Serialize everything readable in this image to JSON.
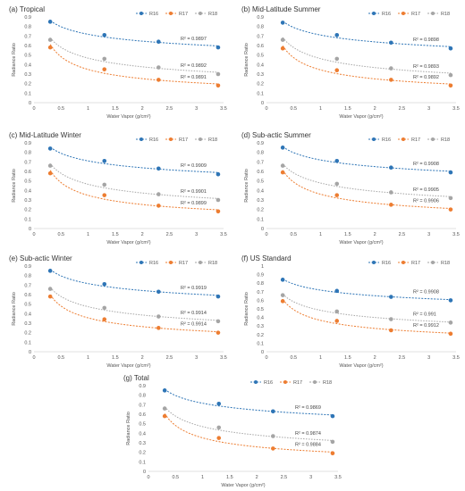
{
  "chart_data": [
    {
      "type": "scatter",
      "title": "(a) Tropical",
      "xlabel": "Water Vapor (g/cm²)",
      "ylabel": "Radiance Ratio",
      "xlim": [
        0,
        3.5
      ],
      "ylim": [
        0,
        0.9
      ],
      "xticks": [
        "0",
        "0.5",
        "1",
        "1.5",
        "2",
        "2.5",
        "3",
        "3.5"
      ],
      "yticks": [
        "0",
        "0.1",
        "0.2",
        "0.3",
        "0.4",
        "0.5",
        "0.6",
        "0.7",
        "0.8",
        "0.9"
      ],
      "legend": "top-right",
      "x": [
        0.3,
        1.3,
        2.3,
        3.4
      ],
      "series": [
        {
          "name": "R16",
          "values": [
            0.85,
            0.71,
            0.64,
            0.58
          ],
          "r2": "R² = 0.9897"
        },
        {
          "name": "R17",
          "values": [
            0.58,
            0.35,
            0.24,
            0.18
          ],
          "r2": "R² = 0.9891"
        },
        {
          "name": "R18",
          "values": [
            0.66,
            0.46,
            0.37,
            0.3
          ],
          "r2": "R² = 0.9892"
        }
      ]
    },
    {
      "type": "scatter",
      "title": "(b) Mid-Latitude Summer",
      "xlabel": "Water Vapor (g/cm²)",
      "ylabel": "Radiance Ratio",
      "xlim": [
        0,
        3.5
      ],
      "ylim": [
        0,
        0.9
      ],
      "xticks": [
        "0",
        "0.5",
        "1",
        "1.5",
        "2",
        "2.5",
        "3",
        "3.5"
      ],
      "yticks": [
        "0",
        "0.1",
        "0.2",
        "0.3",
        "0.4",
        "0.5",
        "0.6",
        "0.7",
        "0.8",
        "0.9"
      ],
      "legend": "top-right",
      "x": [
        0.3,
        1.3,
        2.3,
        3.4
      ],
      "series": [
        {
          "name": "R16",
          "values": [
            0.84,
            0.71,
            0.63,
            0.57
          ],
          "r2": "R² = 0.9898"
        },
        {
          "name": "R17",
          "values": [
            0.57,
            0.34,
            0.24,
            0.18
          ],
          "r2": "R² = 0.9892"
        },
        {
          "name": "R18",
          "values": [
            0.66,
            0.46,
            0.36,
            0.29
          ],
          "r2": "R² = 0.9893"
        }
      ]
    },
    {
      "type": "scatter",
      "title": "(c) Mid-Latitude Winter",
      "xlabel": "Water Vapor (g/cm²)",
      "ylabel": "Radiance Ratio",
      "xlim": [
        0,
        3.5
      ],
      "ylim": [
        0,
        0.9
      ],
      "xticks": [
        "0",
        "0.5",
        "1",
        "1.5",
        "2",
        "2.5",
        "3",
        "3.5"
      ],
      "yticks": [
        "0",
        "0.1",
        "0.2",
        "0.3",
        "0.4",
        "0.5",
        "0.6",
        "0.7",
        "0.8",
        "0.9"
      ],
      "legend": "top-right",
      "x": [
        0.3,
        1.3,
        2.3,
        3.4
      ],
      "series": [
        {
          "name": "R16",
          "values": [
            0.84,
            0.71,
            0.63,
            0.57
          ],
          "r2": "R² = 0.9909"
        },
        {
          "name": "R17",
          "values": [
            0.58,
            0.35,
            0.24,
            0.18
          ],
          "r2": "R² = 0.9899"
        },
        {
          "name": "R18",
          "values": [
            0.66,
            0.46,
            0.36,
            0.3
          ],
          "r2": "R² = 0.9901"
        }
      ]
    },
    {
      "type": "scatter",
      "title": "(d) Sub-actic Summer",
      "xlabel": "Water Vapor (g/cm²)",
      "ylabel": "Radiance Ratio",
      "xlim": [
        0,
        3.5
      ],
      "ylim": [
        0,
        0.9
      ],
      "xticks": [
        "0",
        "0.5",
        "1",
        "1.5",
        "2",
        "2.5",
        "3",
        "3.5"
      ],
      "yticks": [
        "0",
        "0.1",
        "0.2",
        "0.3",
        "0.4",
        "0.5",
        "0.6",
        "0.7",
        "0.8",
        "0.9"
      ],
      "legend": "top-right",
      "x": [
        0.3,
        1.3,
        2.3,
        3.4
      ],
      "series": [
        {
          "name": "R16",
          "values": [
            0.85,
            0.71,
            0.64,
            0.59
          ],
          "r2": "R² = 0.9908"
        },
        {
          "name": "R17",
          "values": [
            0.59,
            0.35,
            0.25,
            0.2
          ],
          "r2": "R² = 0.9906"
        },
        {
          "name": "R18",
          "values": [
            0.66,
            0.47,
            0.38,
            0.32
          ],
          "r2": "R² = 0.9905"
        }
      ]
    },
    {
      "type": "scatter",
      "title": "(e) Sub-actic Winter",
      "xlabel": "Water Vapor (g/cm²)",
      "ylabel": "Radiance Ratio",
      "xlim": [
        0,
        3.5
      ],
      "ylim": [
        0,
        0.9
      ],
      "xticks": [
        "0",
        "0.5",
        "1",
        "1.5",
        "2",
        "2.5",
        "3",
        "3.5"
      ],
      "yticks": [
        "0",
        "0.1",
        "0.2",
        "0.3",
        "0.4",
        "0.5",
        "0.6",
        "0.7",
        "0.8",
        "0.9"
      ],
      "legend": "top-right",
      "x": [
        0.3,
        1.3,
        2.3,
        3.4
      ],
      "series": [
        {
          "name": "R16",
          "values": [
            0.85,
            0.71,
            0.63,
            0.58
          ],
          "r2": "R² = 0.9919"
        },
        {
          "name": "R17",
          "values": [
            0.58,
            0.34,
            0.25,
            0.2
          ],
          "r2": "R² = 0.9914"
        },
        {
          "name": "R18",
          "values": [
            0.66,
            0.46,
            0.37,
            0.32
          ],
          "r2": "R² = 0.9914"
        }
      ]
    },
    {
      "type": "scatter",
      "title": "(f) US Standard",
      "xlabel": "Water Vapor (g/cm²)",
      "ylabel": "Radiance Ratio",
      "xlim": [
        0,
        3.5
      ],
      "ylim": [
        0,
        1
      ],
      "xticks": [
        "0",
        "0.5",
        "1",
        "1.5",
        "2",
        "2.5",
        "3",
        "3.5"
      ],
      "yticks": [
        "0",
        "0.1",
        "0.2",
        "0.3",
        "0.4",
        "0.5",
        "0.6",
        "0.7",
        "0.8",
        "0.9",
        "1"
      ],
      "legend": "top-right",
      "x": [
        0.3,
        1.3,
        2.3,
        3.4
      ],
      "series": [
        {
          "name": "R16",
          "values": [
            0.84,
            0.71,
            0.64,
            0.6
          ],
          "r2": "R² = 0.9908"
        },
        {
          "name": "R17",
          "values": [
            0.59,
            0.36,
            0.25,
            0.21
          ],
          "r2": "R² = 0.9912"
        },
        {
          "name": "R18",
          "values": [
            0.66,
            0.47,
            0.38,
            0.34
          ],
          "r2": "R² = 0.991"
        }
      ]
    },
    {
      "type": "scatter",
      "title": "(g) Total",
      "xlabel": "Water Vapor (g/cm²)",
      "ylabel": "Radiance Ratio",
      "xlim": [
        0,
        3.5
      ],
      "ylim": [
        0,
        0.9
      ],
      "xticks": [
        "0",
        "0.5",
        "1",
        "1.5",
        "2",
        "2.5",
        "3",
        "3.5"
      ],
      "yticks": [
        "0",
        "0.1",
        "0.2",
        "0.3",
        "0.4",
        "0.5",
        "0.6",
        "0.7",
        "0.8",
        "0.9"
      ],
      "legend": "top-right",
      "x": [
        0.3,
        1.3,
        2.3,
        3.4
      ],
      "series": [
        {
          "name": "R16",
          "values": [
            0.85,
            0.71,
            0.63,
            0.58
          ],
          "r2": "R² = 0.9869"
        },
        {
          "name": "R17",
          "values": [
            0.58,
            0.35,
            0.24,
            0.19
          ],
          "r2": "R² = 0.9884"
        },
        {
          "name": "R18",
          "values": [
            0.66,
            0.46,
            0.37,
            0.31
          ],
          "r2": "R² = 0.9874"
        }
      ]
    }
  ],
  "colors": {
    "R16": "#2e75b6",
    "R17": "#ed7d31",
    "R18": "#a5a5a5",
    "axis": "#d9d9d9",
    "text": "#555555"
  }
}
